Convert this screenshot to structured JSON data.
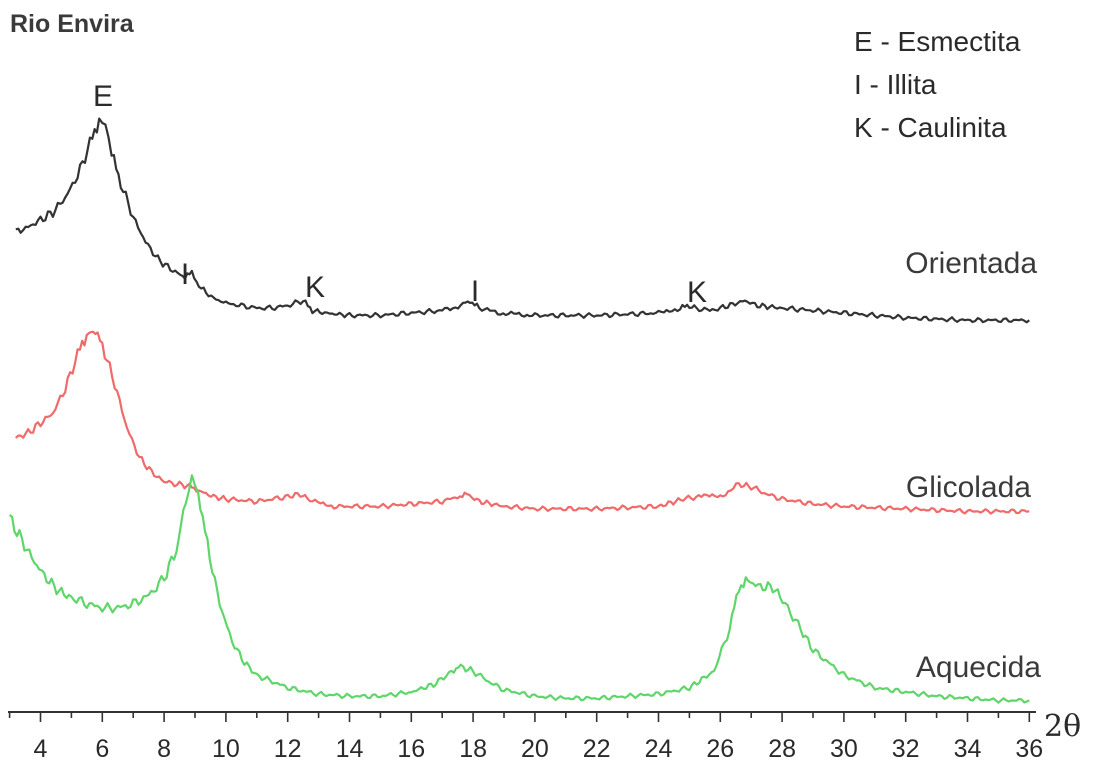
{
  "chart_data": {
    "type": "line",
    "title": "Rio Envira",
    "xlabel": "2θ",
    "ylabel": "",
    "xlim": [
      3,
      36
    ],
    "x_ticks": [
      4,
      6,
      8,
      10,
      12,
      14,
      16,
      18,
      20,
      22,
      24,
      26,
      28,
      30,
      32,
      34,
      36
    ],
    "grid": false,
    "legend_entries": [
      "E - Esmectita",
      "I - Illita",
      "K - Caulinita"
    ],
    "legend_position": "top-right",
    "peak_labels": [
      {
        "text": "E",
        "x": 6.0,
        "series": "Orientada"
      },
      {
        "text": "I",
        "x": 8.9,
        "series": "Orientada"
      },
      {
        "text": "K",
        "x": 12.5,
        "series": "Orientada"
      },
      {
        "text": "I",
        "x": 17.9,
        "series": "Orientada"
      },
      {
        "text": "K",
        "x": 25.0,
        "series": "Orientada"
      }
    ],
    "series": [
      {
        "name": "Orientada",
        "color": "#333333",
        "x": [
          3.2,
          3.6,
          4.0,
          4.4,
          4.8,
          5.2,
          5.6,
          5.9,
          6.1,
          6.3,
          6.6,
          7.0,
          7.4,
          7.8,
          8.2,
          8.6,
          8.9,
          9.2,
          9.6,
          10.0,
          10.5,
          11.0,
          11.5,
          12.0,
          12.5,
          12.8,
          13.2,
          14.0,
          15.0,
          16.0,
          17.0,
          17.6,
          17.9,
          18.2,
          18.8,
          20.0,
          22.0,
          24.0,
          24.7,
          25.0,
          25.4,
          26.0,
          26.8,
          27.2,
          28.0,
          29.0,
          30.0,
          31.0,
          32.0,
          34.0,
          36.0
        ],
        "y": [
          0.42,
          0.44,
          0.47,
          0.5,
          0.56,
          0.65,
          0.78,
          0.88,
          0.86,
          0.74,
          0.62,
          0.48,
          0.38,
          0.31,
          0.27,
          0.24,
          0.25,
          0.19,
          0.15,
          0.13,
          0.12,
          0.11,
          0.11,
          0.12,
          0.14,
          0.1,
          0.09,
          0.08,
          0.08,
          0.09,
          0.1,
          0.12,
          0.14,
          0.11,
          0.09,
          0.08,
          0.08,
          0.09,
          0.11,
          0.12,
          0.1,
          0.11,
          0.14,
          0.12,
          0.11,
          0.1,
          0.09,
          0.08,
          0.07,
          0.06,
          0.06
        ]
      },
      {
        "name": "Glicolada",
        "color": "#f06a6a",
        "x": [
          3.2,
          3.6,
          4.0,
          4.4,
          4.8,
          5.2,
          5.5,
          5.7,
          6.0,
          6.4,
          6.8,
          7.2,
          7.6,
          8.0,
          8.5,
          8.9,
          9.2,
          9.6,
          10.0,
          11.0,
          12.0,
          12.4,
          12.8,
          13.5,
          15.0,
          16.0,
          17.0,
          17.5,
          17.8,
          18.2,
          19.0,
          20.0,
          22.0,
          24.0,
          24.8,
          25.3,
          26.0,
          26.6,
          27.0,
          27.5,
          28.0,
          29.0,
          30.0,
          32.0,
          34.0,
          36.0
        ],
        "y": [
          0.36,
          0.38,
          0.42,
          0.46,
          0.56,
          0.7,
          0.78,
          0.8,
          0.74,
          0.58,
          0.4,
          0.28,
          0.22,
          0.18,
          0.17,
          0.16,
          0.14,
          0.12,
          0.11,
          0.1,
          0.12,
          0.13,
          0.1,
          0.08,
          0.08,
          0.09,
          0.1,
          0.12,
          0.13,
          0.1,
          0.08,
          0.07,
          0.07,
          0.08,
          0.11,
          0.12,
          0.12,
          0.17,
          0.16,
          0.13,
          0.11,
          0.09,
          0.08,
          0.07,
          0.06,
          0.06
        ]
      },
      {
        "name": "Aquecida",
        "color": "#5fd66a",
        "x": [
          3.0,
          3.4,
          3.8,
          4.2,
          4.6,
          5.0,
          5.5,
          6.0,
          6.5,
          7.0,
          7.5,
          8.0,
          8.4,
          8.7,
          8.9,
          9.1,
          9.4,
          9.8,
          10.2,
          10.6,
          11.0,
          12.0,
          13.0,
          14.0,
          15.0,
          16.0,
          16.8,
          17.3,
          17.6,
          18.0,
          18.5,
          19.0,
          20.0,
          21.0,
          22.0,
          23.0,
          24.0,
          25.0,
          25.8,
          26.3,
          26.6,
          26.9,
          27.3,
          27.7,
          28.1,
          28.6,
          29.0,
          30.0,
          31.0,
          32.0,
          33.0,
          34.0,
          35.0,
          36.0
        ],
        "y": [
          0.93,
          0.82,
          0.72,
          0.64,
          0.58,
          0.55,
          0.52,
          0.5,
          0.5,
          0.52,
          0.56,
          0.64,
          0.78,
          1.0,
          1.12,
          1.06,
          0.8,
          0.52,
          0.34,
          0.24,
          0.18,
          0.12,
          0.09,
          0.08,
          0.08,
          0.1,
          0.14,
          0.2,
          0.22,
          0.2,
          0.15,
          0.11,
          0.08,
          0.07,
          0.07,
          0.08,
          0.09,
          0.12,
          0.2,
          0.4,
          0.6,
          0.63,
          0.6,
          0.6,
          0.52,
          0.4,
          0.3,
          0.18,
          0.12,
          0.1,
          0.08,
          0.07,
          0.06,
          0.06
        ]
      }
    ]
  }
}
